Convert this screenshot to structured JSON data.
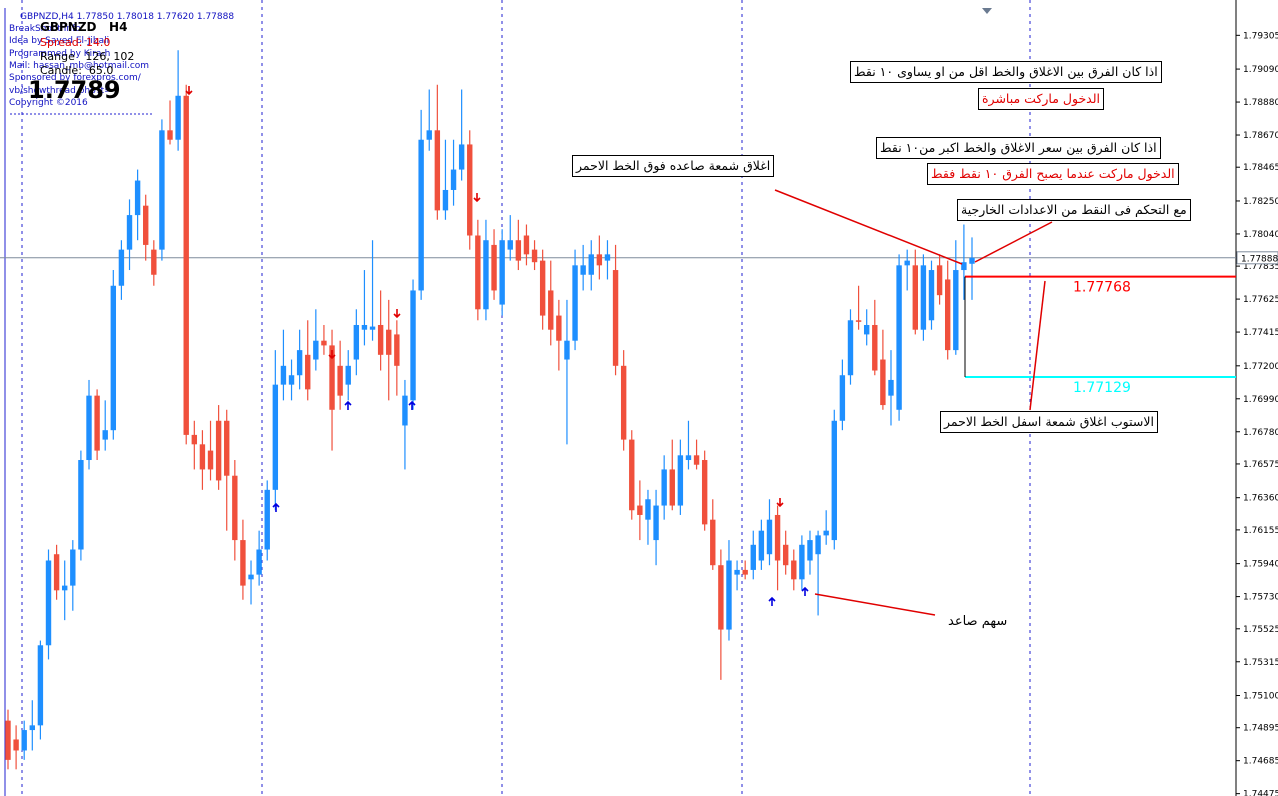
{
  "chart_data": {
    "type": "candlestick",
    "symbol_header": "GBPNZD,H4  1.77850 1.78018 1.77620 1.77888",
    "indicator": {
      "lines": [
        "BreakShoot Info",
        "Idea by Sayed El-Jibali",
        "Programmed by Kira-h",
        "Mail: hassan_mb@hotmail.com",
        "Sponsored by forexpros.com/",
        "vb/showthread.php?t=",
        "Copyright ©2016"
      ],
      "pair": "GBPNZD   H4",
      "spread": "Spread: 14.0",
      "range": "Range   126, 102",
      "candle": "Candle:  65.0",
      "price": "1.7789"
    },
    "bull_color": "#1e8fff",
    "bear_color": "#f0503c",
    "ylim": [
      1.7446,
      1.7953
    ],
    "yticks": [
      {
        "value": 1.79305,
        "label": "1.79305"
      },
      {
        "value": 1.7909,
        "label": "1.79090"
      },
      {
        "value": 1.7888,
        "label": "1.78880"
      },
      {
        "value": 1.7867,
        "label": "1.78670"
      },
      {
        "value": 1.78465,
        "label": "1.78465"
      },
      {
        "value": 1.7825,
        "label": "1.78250"
      },
      {
        "value": 1.7804,
        "label": "1.78040"
      },
      {
        "value": 1.77835,
        "label": "1.77835"
      },
      {
        "value": 1.77625,
        "label": "1.77625"
      },
      {
        "value": 1.77415,
        "label": "1.77415"
      },
      {
        "value": 1.772,
        "label": "1.77200"
      },
      {
        "value": 1.7699,
        "label": "1.76990"
      },
      {
        "value": 1.7678,
        "label": "1.76780"
      },
      {
        "value": 1.76575,
        "label": "1.76575"
      },
      {
        "value": 1.7636,
        "label": "1.76360"
      },
      {
        "value": 1.76155,
        "label": "1.76155"
      },
      {
        "value": 1.7594,
        "label": "1.75940"
      },
      {
        "value": 1.7573,
        "label": "1.75730"
      },
      {
        "value": 1.75525,
        "label": "1.75525"
      },
      {
        "value": 1.75315,
        "label": "1.75315"
      },
      {
        "value": 1.751,
        "label": "1.75100"
      },
      {
        "value": 1.74895,
        "label": "1.74895"
      },
      {
        "value": 1.74685,
        "label": "1.74685"
      },
      {
        "value": 1.74475,
        "label": "1.74475"
      }
    ],
    "current_price": 1.77888,
    "lines": [
      {
        "value": 1.77768,
        "color": "#ff0000"
      },
      {
        "value": 1.77129,
        "color": "#00ffff"
      }
    ],
    "annotations": [
      "اذا كان الفرق بين الاغلاق والخط اقل من او يساوى ١٠ نقط",
      "الدخول ماركت مباشرة",
      "اذا كان الفرق بين سعر الاغلاق والخط اكبر من١٠ نقط",
      "الدخول ماركت عندما يصبح الفرق ١٠ نقط فقط",
      "مع التحكم فى النقط من الاعدادات الخارجية",
      "اغلاق شمعة صاعده فوق الخط الاحمر",
      "الاستوب اغلاق شمعة اسفل الخط الاحمر",
      "سهم صاعد"
    ],
    "candles": [
      [
        1.7494,
        1.7501,
        1.7463,
        1.7469
      ],
      [
        1.7482,
        1.7491,
        1.7463,
        1.7475
      ],
      [
        1.7475,
        1.7494,
        1.7469,
        1.7488
      ],
      [
        1.7488,
        1.7507,
        1.7475,
        1.7491
      ],
      [
        1.7491,
        1.7545,
        1.7482,
        1.7542
      ],
      [
        1.7542,
        1.7603,
        1.7533,
        1.7596
      ],
      [
        1.76,
        1.7606,
        1.7571,
        1.7577
      ],
      [
        1.7577,
        1.7596,
        1.7558,
        1.758
      ],
      [
        1.758,
        1.7609,
        1.7564,
        1.7603
      ],
      [
        1.7603,
        1.7666,
        1.7596,
        1.766
      ],
      [
        1.766,
        1.7711,
        1.7654,
        1.7701
      ],
      [
        1.7701,
        1.7705,
        1.766,
        1.7666
      ],
      [
        1.7673,
        1.7698,
        1.7666,
        1.7679
      ],
      [
        1.7679,
        1.7781,
        1.7673,
        1.7771
      ],
      [
        1.7771,
        1.78,
        1.7762,
        1.7794
      ],
      [
        1.7794,
        1.7826,
        1.7781,
        1.7816
      ],
      [
        1.7816,
        1.7845,
        1.78,
        1.7838
      ],
      [
        1.7822,
        1.7829,
        1.7787,
        1.7797
      ],
      [
        1.7794,
        1.78,
        1.7771,
        1.7778
      ],
      [
        1.7794,
        1.7877,
        1.7787,
        1.787
      ],
      [
        1.787,
        1.7889,
        1.7861,
        1.7864
      ],
      [
        1.7864,
        1.7921,
        1.7857,
        1.7892
      ],
      [
        1.7892,
        1.7899,
        1.767,
        1.7676
      ],
      [
        1.7676,
        1.7685,
        1.7654,
        1.767
      ],
      [
        1.767,
        1.7679,
        1.7641,
        1.7654
      ],
      [
        1.7666,
        1.7685,
        1.7647,
        1.7654
      ],
      [
        1.7685,
        1.7695,
        1.7641,
        1.7647
      ],
      [
        1.7685,
        1.7692,
        1.7615,
        1.765
      ],
      [
        1.765,
        1.766,
        1.7596,
        1.7609
      ],
      [
        1.7609,
        1.7622,
        1.7571,
        1.758
      ],
      [
        1.7584,
        1.7596,
        1.7568,
        1.7587
      ],
      [
        1.7587,
        1.7615,
        1.758,
        1.7603
      ],
      [
        1.7603,
        1.7647,
        1.7596,
        1.7641
      ],
      [
        1.7641,
        1.773,
        1.7628,
        1.7708
      ],
      [
        1.7708,
        1.7743,
        1.7698,
        1.772
      ],
      [
        1.7708,
        1.7724,
        1.7698,
        1.7714
      ],
      [
        1.7714,
        1.7743,
        1.7705,
        1.773
      ],
      [
        1.7727,
        1.7749,
        1.7698,
        1.7705
      ],
      [
        1.7724,
        1.7756,
        1.7717,
        1.7736
      ],
      [
        1.7736,
        1.7746,
        1.7727,
        1.7733
      ],
      [
        1.7733,
        1.7743,
        1.7666,
        1.7692
      ],
      [
        1.772,
        1.7736,
        1.7692,
        1.7701
      ],
      [
        1.7708,
        1.773,
        1.7698,
        1.772
      ],
      [
        1.7724,
        1.7756,
        1.7714,
        1.7746
      ],
      [
        1.7743,
        1.7781,
        1.7733,
        1.7746
      ],
      [
        1.7743,
        1.78,
        1.7736,
        1.7745
      ],
      [
        1.7746,
        1.7768,
        1.7717,
        1.7727
      ],
      [
        1.7743,
        1.7762,
        1.7698,
        1.7727
      ],
      [
        1.774,
        1.7749,
        1.7701,
        1.772
      ],
      [
        1.7682,
        1.7711,
        1.7654,
        1.7701
      ],
      [
        1.7698,
        1.7775,
        1.7692,
        1.7768
      ],
      [
        1.7768,
        1.7883,
        1.7762,
        1.7864
      ],
      [
        1.7864,
        1.7896,
        1.7857,
        1.787
      ],
      [
        1.787,
        1.7899,
        1.7813,
        1.7819
      ],
      [
        1.7819,
        1.7864,
        1.7813,
        1.7832
      ],
      [
        1.7832,
        1.7864,
        1.7822,
        1.7845
      ],
      [
        1.7845,
        1.7896,
        1.7838,
        1.7861
      ],
      [
        1.7861,
        1.787,
        1.7794,
        1.7803
      ],
      [
        1.7803,
        1.7813,
        1.7749,
        1.7756
      ],
      [
        1.7756,
        1.7813,
        1.7749,
        1.78
      ],
      [
        1.7797,
        1.7807,
        1.7762,
        1.7768
      ],
      [
        1.7759,
        1.7807,
        1.7752,
        1.78
      ],
      [
        1.7794,
        1.7816,
        1.7787,
        1.78
      ],
      [
        1.78,
        1.7813,
        1.7781,
        1.7787
      ],
      [
        1.7803,
        1.781,
        1.7784,
        1.7791
      ],
      [
        1.7794,
        1.78,
        1.7781,
        1.7786
      ],
      [
        1.7787,
        1.7794,
        1.7743,
        1.7752
      ],
      [
        1.7768,
        1.7787,
        1.7733,
        1.7743
      ],
      [
        1.7752,
        1.7762,
        1.7717,
        1.7736
      ],
      [
        1.7724,
        1.7762,
        1.767,
        1.7736
      ],
      [
        1.7736,
        1.7794,
        1.773,
        1.7784
      ],
      [
        1.7778,
        1.7797,
        1.7768,
        1.7784
      ],
      [
        1.7778,
        1.78,
        1.7768,
        1.7791
      ],
      [
        1.7791,
        1.7803,
        1.7775,
        1.7784
      ],
      [
        1.7787,
        1.78,
        1.7775,
        1.7791
      ],
      [
        1.7781,
        1.7797,
        1.7714,
        1.772
      ],
      [
        1.772,
        1.773,
        1.7666,
        1.7673
      ],
      [
        1.7673,
        1.7679,
        1.7622,
        1.7628
      ],
      [
        1.7631,
        1.7647,
        1.7609,
        1.7625
      ],
      [
        1.7622,
        1.7641,
        1.7606,
        1.7635
      ],
      [
        1.7609,
        1.7641,
        1.7593,
        1.7631
      ],
      [
        1.7631,
        1.7663,
        1.7622,
        1.7654
      ],
      [
        1.7654,
        1.7673,
        1.7628,
        1.7631
      ],
      [
        1.7631,
        1.7673,
        1.7625,
        1.7663
      ],
      [
        1.766,
        1.7685,
        1.7654,
        1.7663
      ],
      [
        1.7663,
        1.7673,
        1.7654,
        1.7657
      ],
      [
        1.766,
        1.7666,
        1.7615,
        1.7619
      ],
      [
        1.7622,
        1.7635,
        1.759,
        1.7593
      ],
      [
        1.7593,
        1.7603,
        1.752,
        1.7552
      ],
      [
        1.7552,
        1.7609,
        1.7545,
        1.7596
      ],
      [
        1.7587,
        1.7596,
        1.7577,
        1.759
      ],
      [
        1.759,
        1.7596,
        1.7584,
        1.7587
      ],
      [
        1.759,
        1.7615,
        1.7584,
        1.7606
      ],
      [
        1.7596,
        1.7622,
        1.759,
        1.7615
      ],
      [
        1.76,
        1.7635,
        1.7593,
        1.7622
      ],
      [
        1.7625,
        1.7631,
        1.7577,
        1.7596
      ],
      [
        1.7606,
        1.7615,
        1.7587,
        1.7593
      ],
      [
        1.7596,
        1.7603,
        1.7577,
        1.7584
      ],
      [
        1.7584,
        1.7612,
        1.7577,
        1.7606
      ],
      [
        1.7596,
        1.7615,
        1.7587,
        1.7609
      ],
      [
        1.76,
        1.7615,
        1.7561,
        1.7612
      ],
      [
        1.7612,
        1.7628,
        1.7606,
        1.7615
      ],
      [
        1.7609,
        1.7692,
        1.7603,
        1.7685
      ],
      [
        1.7685,
        1.7724,
        1.7679,
        1.7714
      ],
      [
        1.7714,
        1.7756,
        1.7708,
        1.7749
      ],
      [
        1.7749,
        1.7771,
        1.7743,
        1.7748
      ],
      [
        1.774,
        1.7756,
        1.7733,
        1.7746
      ],
      [
        1.7746,
        1.7762,
        1.7714,
        1.7717
      ],
      [
        1.7724,
        1.7743,
        1.7692,
        1.7695
      ],
      [
        1.7701,
        1.773,
        1.7682,
        1.7711
      ],
      [
        1.7692,
        1.7791,
        1.7685,
        1.7784
      ],
      [
        1.7784,
        1.7794,
        1.7768,
        1.7787
      ],
      [
        1.7784,
        1.7794,
        1.774,
        1.7743
      ],
      [
        1.7743,
        1.7791,
        1.7736,
        1.7784
      ],
      [
        1.7749,
        1.7787,
        1.7743,
        1.7781
      ],
      [
        1.7784,
        1.7791,
        1.7759,
        1.7765
      ],
      [
        1.7775,
        1.7787,
        1.7724,
        1.773
      ],
      [
        1.773,
        1.78,
        1.7727,
        1.7781
      ],
      [
        1.7781,
        1.781,
        1.7762,
        1.7786
      ],
      [
        1.7785,
        1.78018,
        1.7762,
        1.77888
      ]
    ]
  }
}
